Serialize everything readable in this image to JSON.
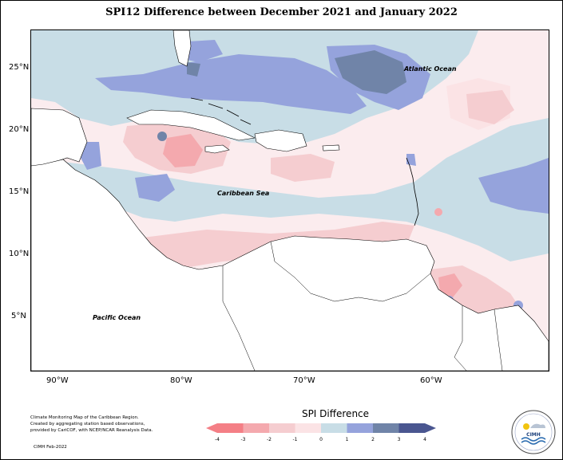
{
  "title": "SPI12 Difference between December 2021 and January 2022",
  "lat_labels": [
    "25°N",
    "20°N",
    "15°N",
    "10°N",
    "5°N"
  ],
  "lon_labels": [
    "90°W",
    "80°W",
    "70°W",
    "60°W"
  ],
  "ocean_labels": {
    "atlantic": "Atlantic Ocean",
    "caribbean": "Caribbean Sea",
    "pacific": "Pacific Ocean"
  },
  "legend": {
    "title": "SPI Difference",
    "ticks": [
      "-4",
      "-3",
      "-2",
      "-1",
      "0",
      "1",
      "2",
      "3",
      "4"
    ],
    "colors": [
      "#f47f86",
      "#f4a9ae",
      "#f5cdd0",
      "#fbe3e5",
      "#fdf2f3",
      "#c8dde6",
      "#95a3dc",
      "#7084a8",
      "#4a5690"
    ]
  },
  "credit": {
    "line1": "Climate Monitoring Map of the Caribbean Region.",
    "line2": "Created by aggregating station based observations,",
    "line3": "provided by CariCOF, with NCEP/NCAR Reanalysis Data.",
    "date": "CIMH Feb-2022"
  },
  "logo": {
    "text": "CIMH"
  }
}
